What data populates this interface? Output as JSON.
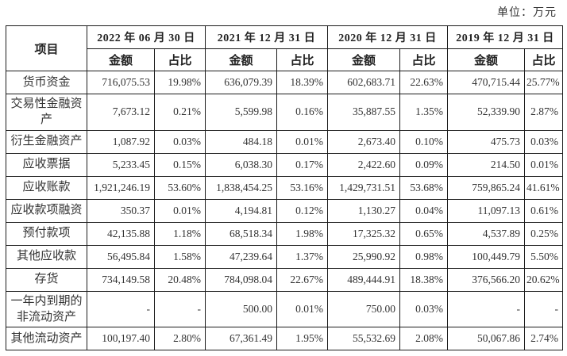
{
  "unit_label": "单位：万元",
  "table": {
    "item_header": "项目",
    "amount_label": "金额",
    "ratio_label": "占比",
    "col_groups": [
      {
        "date": "2022 年 06 月 30 日"
      },
      {
        "date": "2021 年 12 月 31 日"
      },
      {
        "date": "2020 年 12 月 31 日"
      },
      {
        "date": "2019 年 12 月 31 日"
      }
    ],
    "rows": [
      {
        "item": "货币资金",
        "values": [
          "716,075.53",
          "19.98%",
          "636,079.39",
          "18.39%",
          "602,683.71",
          "22.63%",
          "470,715.44",
          "25.77%"
        ]
      },
      {
        "item": "交易性金融资产",
        "values": [
          "7,673.12",
          "0.21%",
          "5,599.98",
          "0.16%",
          "35,887.55",
          "1.35%",
          "52,339.90",
          "2.87%"
        ]
      },
      {
        "item": "衍生金融资产",
        "values": [
          "1,087.92",
          "0.03%",
          "484.18",
          "0.01%",
          "2,673.40",
          "0.10%",
          "475.73",
          "0.03%"
        ]
      },
      {
        "item": "应收票据",
        "values": [
          "5,233.45",
          "0.15%",
          "6,038.30",
          "0.17%",
          "2,422.60",
          "0.09%",
          "214.50",
          "0.01%"
        ]
      },
      {
        "item": "应收账款",
        "values": [
          "1,921,246.19",
          "53.60%",
          "1,838,454.25",
          "53.16%",
          "1,429,731.51",
          "53.68%",
          "759,865.24",
          "41.61%"
        ]
      },
      {
        "item": "应收款项融资",
        "values": [
          "350.37",
          "0.01%",
          "4,194.81",
          "0.12%",
          "1,130.27",
          "0.04%",
          "11,097.13",
          "0.61%"
        ]
      },
      {
        "item": "预付款项",
        "values": [
          "42,135.88",
          "1.18%",
          "68,518.34",
          "1.98%",
          "17,325.32",
          "0.65%",
          "4,537.89",
          "0.25%"
        ]
      },
      {
        "item": "其他应收款",
        "values": [
          "56,495.84",
          "1.58%",
          "47,239.64",
          "1.37%",
          "25,990.92",
          "0.98%",
          "100,449.79",
          "5.50%"
        ]
      },
      {
        "item": "存货",
        "values": [
          "734,149.58",
          "20.48%",
          "784,098.04",
          "22.67%",
          "489,444.91",
          "18.38%",
          "376,566.20",
          "20.62%"
        ]
      },
      {
        "item": "一年内到期的非流动资产",
        "values": [
          "-",
          "-",
          "500.00",
          "0.01%",
          "750.00",
          "0.03%",
          "-",
          "-"
        ]
      },
      {
        "item": "其他流动资产",
        "values": [
          "100,197.40",
          "2.80%",
          "67,361.49",
          "1.95%",
          "55,532.69",
          "2.08%",
          "50,067.86",
          "2.74%"
        ]
      }
    ]
  }
}
